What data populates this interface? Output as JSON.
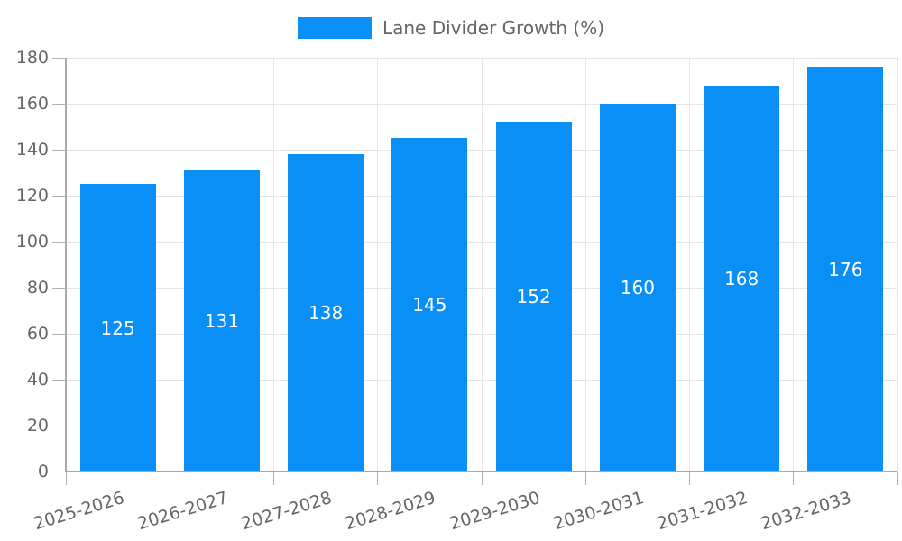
{
  "legend": {
    "label": "Lane Divider Growth (%)"
  },
  "colors": {
    "bar": "#098ff5",
    "text": "#666666",
    "grid": "#e5e5e5",
    "axis": "#a8a8a8",
    "tick": "#b3b3b3",
    "bar_label": "#ffffff",
    "background": "#ffffff"
  },
  "chart_data": {
    "type": "bar",
    "title": "Lane Divider Growth (%)",
    "categories": [
      "2025-2026",
      "2026-2027",
      "2027-2028",
      "2028-2029",
      "2029-2030",
      "2030-2031",
      "2031-2032",
      "2032-2033"
    ],
    "values": [
      125,
      131,
      138,
      145,
      152,
      160,
      168,
      176
    ],
    "xlabel": "",
    "ylabel": "",
    "ylim": [
      0,
      180
    ],
    "ytick_step": 20,
    "grid": true,
    "legend_position": "top-center",
    "bar_value_labels": "inside-middle",
    "x_tick_rotation_deg": -17
  }
}
